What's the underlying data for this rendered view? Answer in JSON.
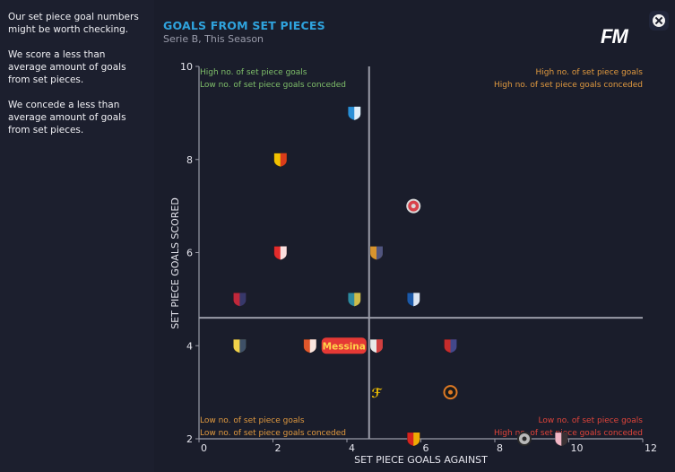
{
  "sidebar": {
    "paragraphs": [
      "Our set piece goal numbers might be worth checking.",
      "We score a less than average amount of goals from set pieces.",
      "We concede a less than average amount of goals from set pieces."
    ]
  },
  "header": {
    "title": "GOALS FROM SET PIECES",
    "subtitle": "Serie B, This Season",
    "logo": "FM",
    "close_icon": "close-icon"
  },
  "colors": {
    "title": "#2fa3dd",
    "quadrant_good": "#7fbf6a",
    "quadrant_mixed": "#e0993f",
    "quadrant_bad": "#e0443a",
    "highlight_badge": "#e53935",
    "axis": "#9a9ca8"
  },
  "chart_data": {
    "type": "scatter",
    "title": "GOALS FROM SET PIECES",
    "subtitle": "Serie B, This Season",
    "xlabel": "SET PIECE GOALS AGAINST",
    "ylabel": "SET PIECE GOALS SCORED",
    "xlim": [
      0,
      12
    ],
    "ylim": [
      2,
      10
    ],
    "xticks": [
      0,
      2,
      4,
      6,
      8,
      10,
      12
    ],
    "yticks": [
      2,
      4,
      6,
      8,
      10
    ],
    "grid": false,
    "average_lines": {
      "x": 4.6,
      "y": 4.6
    },
    "quadrants": {
      "top_left": [
        "High no. of set piece goals",
        "Low no. of set piece goals conceded"
      ],
      "top_right": [
        "High no. of set piece goals",
        "High no. of set piece goals conceded"
      ],
      "bottom_left": [
        "Low no. of set piece goals",
        "Low no. of set piece goals conceded"
      ],
      "bottom_right": [
        "Low no. of set piece goals",
        "High no. of set piece goals conceded"
      ]
    },
    "highlight_label": "Messina",
    "points": [
      {
        "team": "Pescara",
        "badge": "blue-dolphin-crest",
        "x": 4.2,
        "y": 9,
        "colors": [
          "#2a8fd6",
          "#ffffff"
        ]
      },
      {
        "team": "Catanzaro",
        "badge": "yellow-red-crest",
        "x": 2.2,
        "y": 8,
        "colors": [
          "#f2c200",
          "#d6241f"
        ]
      },
      {
        "team": "Bari",
        "badge": "red-white-round-crest",
        "x": 5.8,
        "y": 7,
        "colors": [
          "#d8424a",
          "#d9d9d9"
        ]
      },
      {
        "team": "Perugia",
        "badge": "red-griffin-crest",
        "x": 2.2,
        "y": 6,
        "colors": [
          "#e22b2b",
          "#ffffff"
        ]
      },
      {
        "team": "Catania",
        "badge": "red-blue-ball-crest",
        "x": 4.8,
        "y": 6,
        "colors": [
          "#d8942e",
          "#3a4a8c"
        ]
      },
      {
        "team": "Cagliari",
        "badge": "red-blue-shield",
        "x": 1.1,
        "y": 5,
        "colors": [
          "#c0283b",
          "#1f3b73"
        ]
      },
      {
        "team": "Lecce",
        "badge": "teal-wolf-shield",
        "x": 4.2,
        "y": 5,
        "colors": [
          "#2e8aa0",
          "#e9c33a"
        ]
      },
      {
        "team": "Sampdoria",
        "badge": "blue-white-stripe-shield",
        "x": 5.8,
        "y": 5,
        "colors": [
          "#1c59a8",
          "#ffffff"
        ]
      },
      {
        "team": "Parma",
        "badge": "yellow-blue-cross-shield",
        "x": 1.1,
        "y": 4,
        "colors": [
          "#f1d24a",
          "#1f3a6c"
        ]
      },
      {
        "team": "Messina",
        "badge": "orange-white-crest",
        "x": 3.0,
        "y": 4,
        "colors": [
          "#e0572b",
          "#ffffff"
        ],
        "highlight": true
      },
      {
        "team": "Pro Vercelli",
        "badge": "white-red-cross-crest",
        "x": 4.8,
        "y": 4,
        "colors": [
          "#e8e8e8",
          "#cc2222"
        ]
      },
      {
        "team": "Vicenza",
        "badge": "red-blue-shield",
        "x": 6.8,
        "y": 4,
        "colors": [
          "#c62c2c",
          "#2b4e9c"
        ]
      },
      {
        "team": "Feralpisalò",
        "badge": "yellow-fa-monogram",
        "x": 4.8,
        "y": 3,
        "colors": [
          "#f2c200",
          "#1a1d2b"
        ]
      },
      {
        "team": "Venezia",
        "badge": "black-orange-green-round",
        "x": 6.8,
        "y": 3,
        "colors": [
          "#1a1a1a",
          "#e07a24"
        ]
      },
      {
        "team": "Benevento",
        "badge": "red-yellow-flame-shield",
        "x": 5.8,
        "y": 2,
        "colors": [
          "#d6241f",
          "#f2c200"
        ]
      },
      {
        "team": "Spezia",
        "badge": "grey-ring-crest",
        "x": 8.8,
        "y": 2,
        "colors": [
          "#b9b9b9",
          "#2a2a2a"
        ]
      },
      {
        "team": "Palermo",
        "badge": "pink-black-eagle-shield",
        "x": 9.8,
        "y": 2,
        "colors": [
          "#f2b6c6",
          "#1a1a1a"
        ]
      }
    ]
  }
}
